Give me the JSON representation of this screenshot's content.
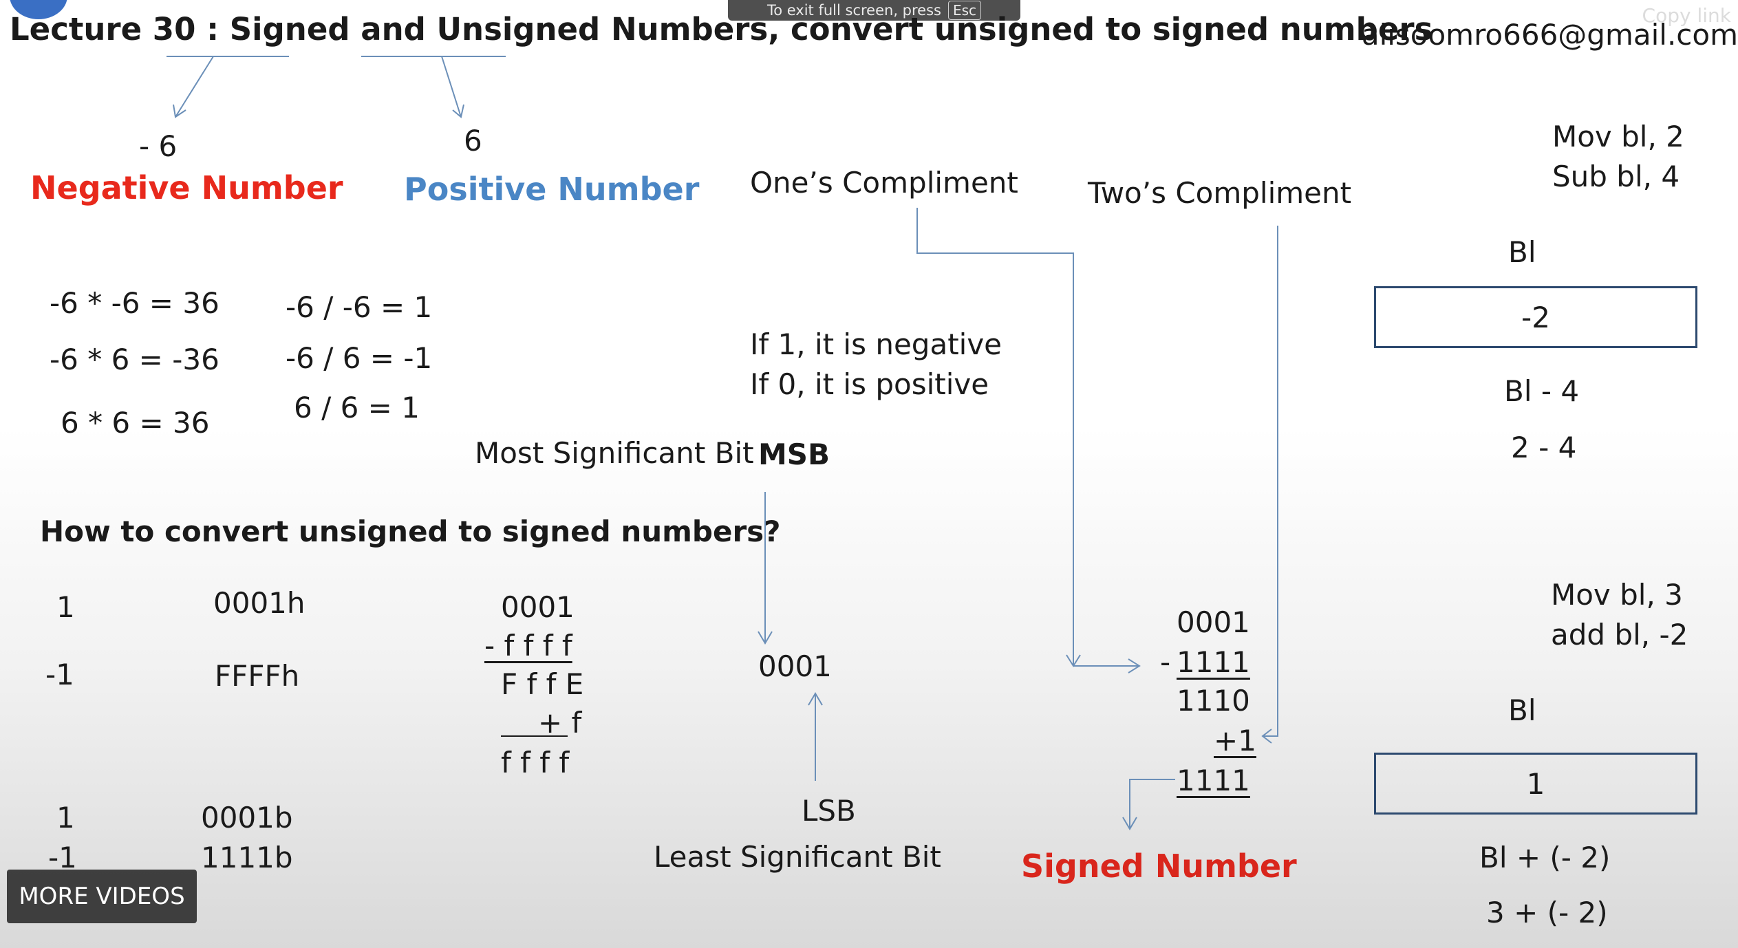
{
  "header": {
    "title": "Lecture 30 : Signed and Unsigned Numbers, convert unsigned to signed numbers",
    "email": "alisoomro666@gmail.com",
    "fullscreen_notice": "To exit full screen, press",
    "esc_key": "Esc",
    "copy_link": "Copy link"
  },
  "top_examples": {
    "negative_value": "- 6",
    "negative_label": "Negative Number",
    "positive_value": "6",
    "positive_label": "Positive Number",
    "ones_compliment": "One’s Compliment",
    "twos_compliment": "Two’s Compliment"
  },
  "multiplication": [
    "-6 * -6 = 36",
    "-6 * 6 = -36",
    "6 * 6 =  36"
  ],
  "division": [
    "-6 / -6 = 1",
    "-6 / 6 = -1",
    "6 / 6 =  1"
  ],
  "msb_section": {
    "rule_negative": "If  1, it is negative",
    "rule_positive": "If  0, it is positive",
    "msb_full": "Most Significant Bit",
    "msb_abbr": "MSB",
    "value": "0001",
    "lsb_abbr": "LSB",
    "lsb_full": "Least Significant Bit"
  },
  "question": "How to convert unsigned to signed numbers?",
  "conversion_table": {
    "hex_rows": [
      {
        "decimal": "1",
        "value": "0001h"
      },
      {
        "decimal": "-1",
        "value": "FFFFh"
      }
    ],
    "bin_rows": [
      {
        "decimal": "1",
        "value": "0001b"
      },
      {
        "decimal": "-1",
        "value": "1111b"
      }
    ]
  },
  "hex_subtraction": {
    "line1": "0001",
    "line2": "- f f f f",
    "line3": "F f f E",
    "line4": "+ f",
    "line5": "f f f f"
  },
  "bin_subtraction": {
    "line1": "0001",
    "line2_sign": "-",
    "line2": "1111",
    "line3": "1110",
    "line4": "+1",
    "line5": "1111",
    "result_label": "Signed Number"
  },
  "register_example_1": {
    "code_line1": "Mov bl, 2",
    "code_line2": "Sub bl, 4",
    "register": "Bl",
    "box_value": "-2",
    "expr1": "Bl - 4",
    "expr2": "2 - 4"
  },
  "register_example_2": {
    "code_line1": "Mov bl, 3",
    "code_line2": "add bl, -2",
    "register": "Bl",
    "box_value": "1",
    "expr1": "Bl + (- 2)",
    "expr2": "3 + (- 2)"
  },
  "overlay": {
    "more_videos": "MORE VIDEOS"
  },
  "colors": {
    "negative": "#e8291c",
    "positive": "#4a86c5",
    "signed": "#d9261c",
    "arrow": "#6b8fb8",
    "box_border": "#2d4a6f"
  }
}
